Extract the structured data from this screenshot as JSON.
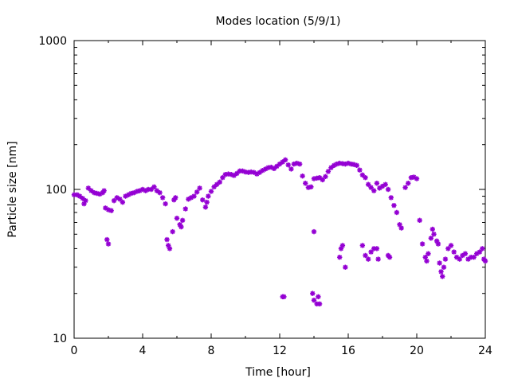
{
  "chart_data": {
    "type": "scatter",
    "title": "Modes location (5/9/1)",
    "xlabel": "Time [hour]",
    "ylabel": "Particle size [nm]",
    "xlim": [
      0,
      24
    ],
    "ylim": [
      10,
      1000
    ],
    "yscale": "log",
    "grid": false,
    "marker": "asterisk",
    "x_ticks": [
      0,
      4,
      8,
      12,
      16,
      20,
      24
    ],
    "x_tick_labels": [
      "0",
      "4",
      "8",
      "12",
      "16",
      "20",
      "24"
    ],
    "y_ticks": [
      10,
      100,
      1000
    ],
    "y_tick_labels": [
      "10",
      "100",
      "1000"
    ],
    "colors": {
      "points": "#9400d3",
      "axes": "#000000",
      "background": "#ffffff"
    },
    "points": [
      [
        0.0,
        92
      ],
      [
        0.17,
        92
      ],
      [
        0.33,
        90
      ],
      [
        0.5,
        87
      ],
      [
        0.58,
        80
      ],
      [
        0.67,
        84
      ],
      [
        0.83,
        102
      ],
      [
        1.0,
        98
      ],
      [
        1.17,
        95
      ],
      [
        1.33,
        94
      ],
      [
        1.5,
        93
      ],
      [
        1.67,
        95
      ],
      [
        1.75,
        98
      ],
      [
        1.83,
        75
      ],
      [
        2.0,
        73
      ],
      [
        1.92,
        46
      ],
      [
        2.0,
        43
      ],
      [
        2.17,
        72
      ],
      [
        2.33,
        84
      ],
      [
        2.5,
        88
      ],
      [
        2.67,
        86
      ],
      [
        2.83,
        82
      ],
      [
        3.0,
        90
      ],
      [
        3.17,
        92
      ],
      [
        3.33,
        94
      ],
      [
        3.5,
        95
      ],
      [
        3.67,
        97
      ],
      [
        3.83,
        98
      ],
      [
        4.0,
        100
      ],
      [
        4.17,
        98
      ],
      [
        4.33,
        100
      ],
      [
        4.5,
        100
      ],
      [
        4.67,
        104
      ],
      [
        4.83,
        98
      ],
      [
        5.0,
        95
      ],
      [
        5.17,
        88
      ],
      [
        5.33,
        80
      ],
      [
        5.42,
        46
      ],
      [
        5.5,
        42
      ],
      [
        5.58,
        40
      ],
      [
        5.75,
        52
      ],
      [
        5.83,
        85
      ],
      [
        5.92,
        88
      ],
      [
        6.0,
        64
      ],
      [
        6.17,
        58
      ],
      [
        6.25,
        56
      ],
      [
        6.33,
        62
      ],
      [
        6.5,
        74
      ],
      [
        6.67,
        86
      ],
      [
        6.83,
        88
      ],
      [
        7.0,
        90
      ],
      [
        7.17,
        96
      ],
      [
        7.33,
        102
      ],
      [
        7.5,
        85
      ],
      [
        7.67,
        76
      ],
      [
        7.75,
        82
      ],
      [
        7.83,
        90
      ],
      [
        8.0,
        97
      ],
      [
        8.17,
        104
      ],
      [
        8.33,
        108
      ],
      [
        8.5,
        112
      ],
      [
        8.67,
        120
      ],
      [
        8.83,
        126
      ],
      [
        9.0,
        127
      ],
      [
        9.17,
        126
      ],
      [
        9.33,
        124
      ],
      [
        9.5,
        128
      ],
      [
        9.67,
        133
      ],
      [
        9.83,
        133
      ],
      [
        10.0,
        131
      ],
      [
        10.17,
        130
      ],
      [
        10.33,
        131
      ],
      [
        10.5,
        130
      ],
      [
        10.67,
        127
      ],
      [
        10.83,
        130
      ],
      [
        11.0,
        134
      ],
      [
        11.17,
        137
      ],
      [
        11.33,
        140
      ],
      [
        11.5,
        141
      ],
      [
        11.67,
        138
      ],
      [
        11.83,
        143
      ],
      [
        12.0,
        148
      ],
      [
        12.17,
        153
      ],
      [
        12.33,
        158
      ],
      [
        12.5,
        146
      ],
      [
        12.67,
        137
      ],
      [
        12.83,
        148
      ],
      [
        13.0,
        150
      ],
      [
        13.17,
        148
      ],
      [
        13.33,
        123
      ],
      [
        13.5,
        110
      ],
      [
        13.67,
        103
      ],
      [
        13.83,
        104
      ],
      [
        14.0,
        118
      ],
      [
        14.17,
        119
      ],
      [
        14.33,
        120
      ],
      [
        14.5,
        116
      ],
      [
        14.67,
        122
      ],
      [
        14.83,
        132
      ],
      [
        15.0,
        140
      ],
      [
        15.17,
        145
      ],
      [
        15.33,
        148
      ],
      [
        15.5,
        150
      ],
      [
        15.67,
        149
      ],
      [
        15.83,
        148
      ],
      [
        16.0,
        150
      ],
      [
        16.17,
        148
      ],
      [
        16.33,
        147
      ],
      [
        16.5,
        145
      ],
      [
        16.67,
        135
      ],
      [
        16.83,
        125
      ],
      [
        17.0,
        120
      ],
      [
        17.17,
        108
      ],
      [
        17.33,
        103
      ],
      [
        17.5,
        98
      ],
      [
        17.67,
        110
      ],
      [
        17.83,
        102
      ],
      [
        18.0,
        105
      ],
      [
        18.17,
        108
      ],
      [
        18.33,
        100
      ],
      [
        18.5,
        88
      ],
      [
        18.67,
        78
      ],
      [
        18.83,
        70
      ],
      [
        19.0,
        58
      ],
      [
        19.1,
        55
      ],
      [
        19.33,
        103
      ],
      [
        19.5,
        110
      ],
      [
        19.67,
        120
      ],
      [
        19.83,
        121
      ],
      [
        20.0,
        118
      ],
      [
        12.17,
        19
      ],
      [
        12.25,
        19
      ],
      [
        13.92,
        20
      ],
      [
        14.0,
        18
      ],
      [
        14.17,
        17
      ],
      [
        14.25,
        19
      ],
      [
        14.33,
        17
      ],
      [
        14.0,
        52
      ],
      [
        15.5,
        35
      ],
      [
        15.58,
        40
      ],
      [
        15.67,
        42
      ],
      [
        15.83,
        30
      ],
      [
        16.83,
        42
      ],
      [
        17.0,
        36
      ],
      [
        17.17,
        34
      ],
      [
        17.33,
        38
      ],
      [
        17.5,
        40
      ],
      [
        17.67,
        40
      ],
      [
        17.75,
        34
      ],
      [
        18.33,
        36
      ],
      [
        18.42,
        35
      ],
      [
        20.17,
        62
      ],
      [
        20.33,
        43
      ],
      [
        20.5,
        35
      ],
      [
        20.58,
        33
      ],
      [
        20.67,
        37
      ],
      [
        20.83,
        47
      ],
      [
        20.92,
        54
      ],
      [
        21.0,
        50
      ],
      [
        21.17,
        45
      ],
      [
        21.25,
        43
      ],
      [
        21.33,
        32
      ],
      [
        21.42,
        28
      ],
      [
        21.5,
        26
      ],
      [
        21.58,
        30
      ],
      [
        21.67,
        34
      ],
      [
        21.83,
        40
      ],
      [
        22.0,
        42
      ],
      [
        22.17,
        38
      ],
      [
        22.33,
        35
      ],
      [
        22.5,
        34
      ],
      [
        22.67,
        36
      ],
      [
        22.83,
        37
      ],
      [
        23.0,
        34
      ],
      [
        23.17,
        35
      ],
      [
        23.33,
        35
      ],
      [
        23.5,
        37
      ],
      [
        23.67,
        38
      ],
      [
        23.83,
        40
      ],
      [
        23.92,
        34
      ],
      [
        24.0,
        33
      ]
    ]
  }
}
